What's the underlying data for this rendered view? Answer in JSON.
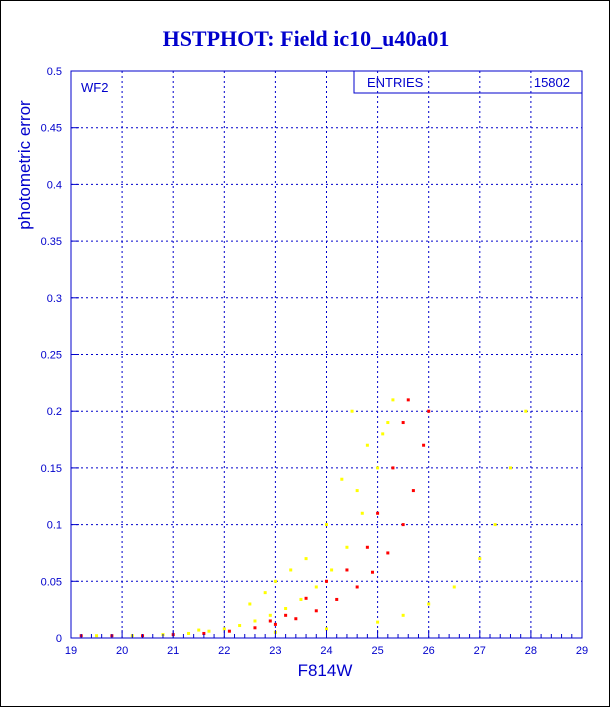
{
  "chart_data": {
    "type": "scatter",
    "title": "HSTPHOT: Field ic10_u40a01",
    "xlabel": "F814W",
    "ylabel": "photometric error",
    "xlim": [
      19,
      29
    ],
    "ylim": [
      0,
      0.5
    ],
    "x_ticks": [
      "19",
      "20",
      "21",
      "22",
      "23",
      "24",
      "25",
      "26",
      "27",
      "28",
      "29"
    ],
    "y_ticks": [
      "0",
      "0.05",
      "0.1",
      "0.15",
      "0.2",
      "0.25",
      "0.3",
      "0.35",
      "0.4",
      "0.45",
      "0.5"
    ],
    "grid": true,
    "panel_label": "WF2",
    "stats": {
      "label": "ENTRIES",
      "value": "15802"
    },
    "series": [
      {
        "color": "#ffff00",
        "points": [
          [
            19.5,
            0.002
          ],
          [
            20.2,
            0.002
          ],
          [
            20.8,
            0.003
          ],
          [
            21.3,
            0.004
          ],
          [
            21.7,
            0.006
          ],
          [
            22.0,
            0.008
          ],
          [
            22.3,
            0.011
          ],
          [
            22.6,
            0.015
          ],
          [
            22.9,
            0.02
          ],
          [
            23.2,
            0.026
          ],
          [
            23.5,
            0.034
          ],
          [
            23.8,
            0.045
          ],
          [
            24.1,
            0.06
          ],
          [
            24.4,
            0.08
          ],
          [
            24.7,
            0.11
          ],
          [
            25.0,
            0.15
          ],
          [
            25.2,
            0.19
          ],
          [
            24.5,
            0.2
          ],
          [
            25.3,
            0.21
          ],
          [
            23.0,
            0.05
          ],
          [
            23.6,
            0.07
          ],
          [
            24.0,
            0.1
          ],
          [
            24.3,
            0.14
          ],
          [
            24.8,
            0.17
          ],
          [
            22.5,
            0.03
          ],
          [
            23.3,
            0.06
          ],
          [
            21.5,
            0.007
          ],
          [
            22.8,
            0.04
          ],
          [
            24.6,
            0.13
          ],
          [
            25.1,
            0.18
          ],
          [
            23.0,
            0.005
          ],
          [
            24.0,
            0.008
          ],
          [
            25.0,
            0.014
          ],
          [
            25.5,
            0.02
          ],
          [
            26.0,
            0.03
          ],
          [
            26.5,
            0.045
          ],
          [
            27.0,
            0.07
          ],
          [
            27.3,
            0.1
          ],
          [
            27.6,
            0.15
          ],
          [
            27.9,
            0.2
          ]
        ]
      },
      {
        "color": "#ff0000",
        "points": [
          [
            19.2,
            0.002
          ],
          [
            19.8,
            0.002
          ],
          [
            20.4,
            0.002
          ],
          [
            21.0,
            0.003
          ],
          [
            21.6,
            0.004
          ],
          [
            22.1,
            0.006
          ],
          [
            22.6,
            0.009
          ],
          [
            23.0,
            0.012
          ],
          [
            23.4,
            0.017
          ],
          [
            23.8,
            0.024
          ],
          [
            24.2,
            0.034
          ],
          [
            24.6,
            0.045
          ],
          [
            24.9,
            0.058
          ],
          [
            25.2,
            0.075
          ],
          [
            25.5,
            0.1
          ],
          [
            25.7,
            0.13
          ],
          [
            25.9,
            0.17
          ],
          [
            25.6,
            0.21
          ],
          [
            24.4,
            0.06
          ],
          [
            24.8,
            0.08
          ],
          [
            25.0,
            0.11
          ],
          [
            23.6,
            0.035
          ],
          [
            24.0,
            0.05
          ],
          [
            25.3,
            0.15
          ],
          [
            25.5,
            0.19
          ],
          [
            26.0,
            0.2
          ],
          [
            23.2,
            0.02
          ],
          [
            22.9,
            0.015
          ]
        ]
      }
    ]
  }
}
